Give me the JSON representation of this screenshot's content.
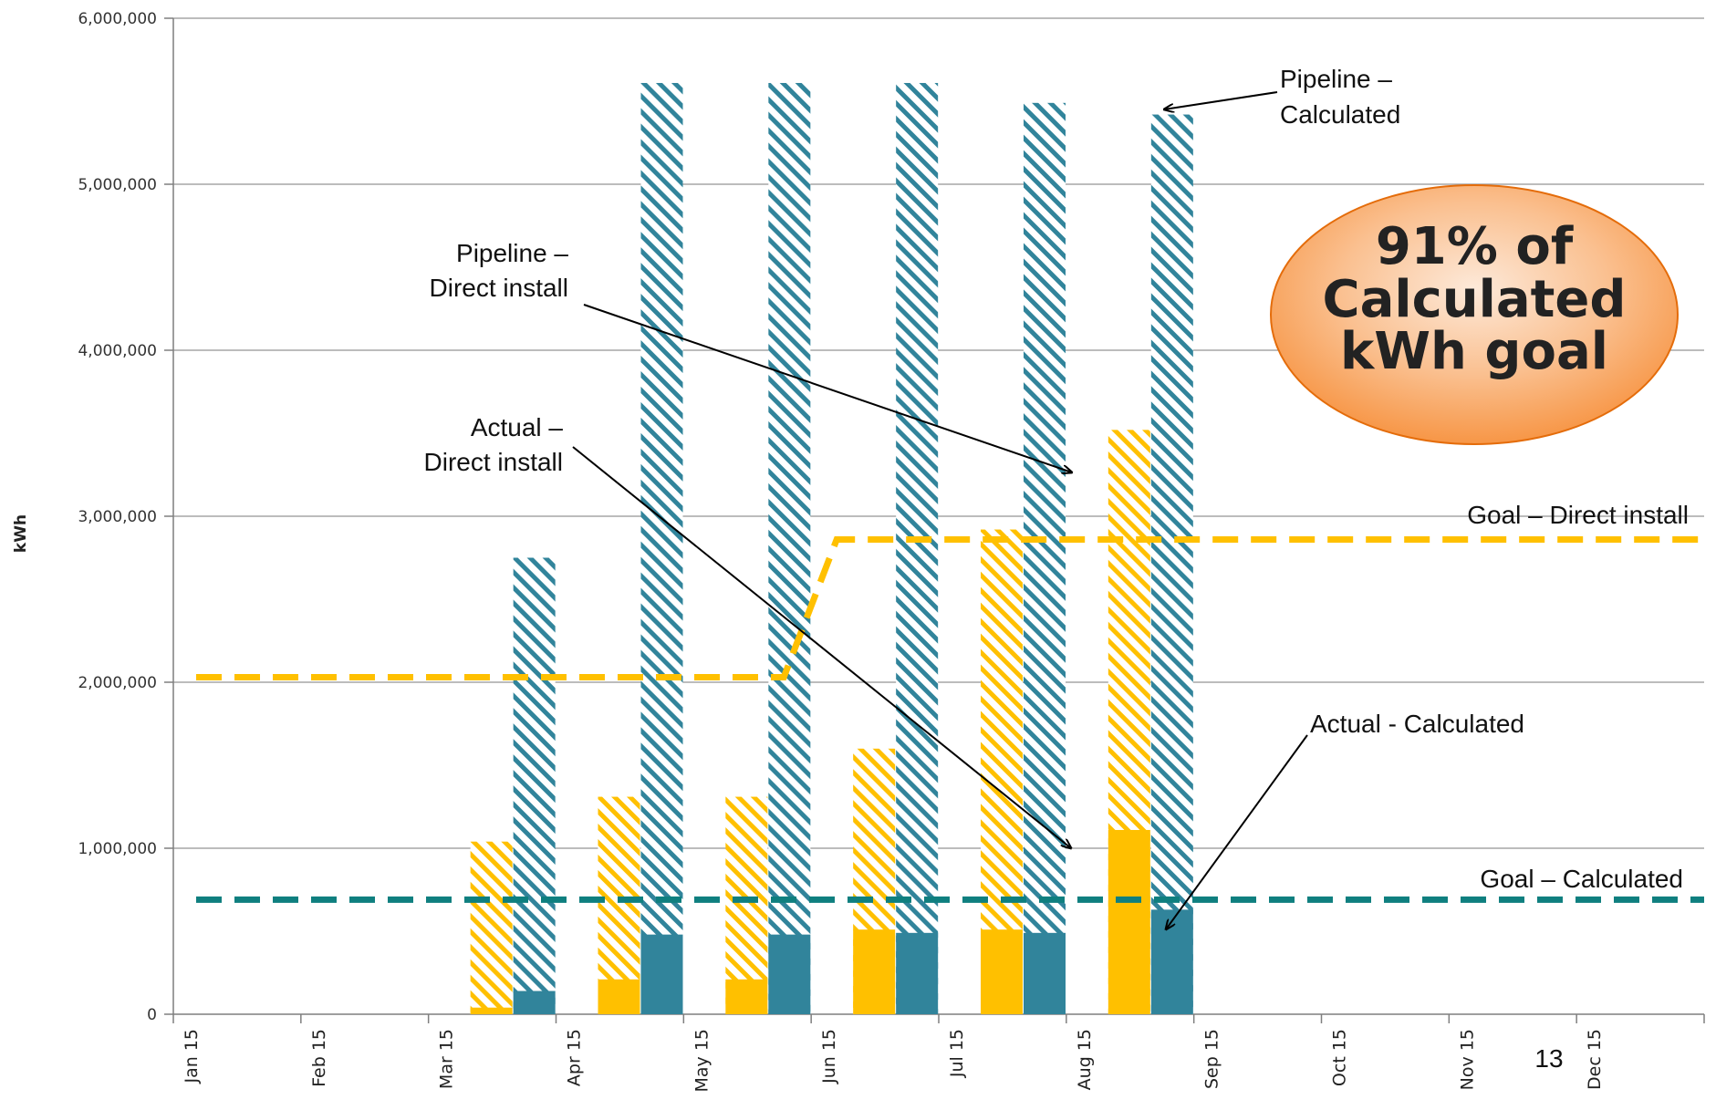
{
  "chart_data": {
    "type": "bar",
    "title": "",
    "xlabel": "",
    "ylabel": "kWh",
    "ylim": [
      0,
      6000000
    ],
    "yticks": [
      0,
      1000000,
      2000000,
      3000000,
      4000000,
      5000000,
      6000000
    ],
    "ytick_labels": [
      "0",
      "1,000,000",
      "2,000,000",
      "3,000,000",
      "4,000,000",
      "5,000,000",
      "6,000,000"
    ],
    "categories": [
      "Jan 15",
      "Feb 15",
      "Mar 15",
      "Apr 15",
      "May 15",
      "Jun 15",
      "Jul 15",
      "Aug 15",
      "Sep 15",
      "Oct 15",
      "Nov 15",
      "Dec 15"
    ],
    "grid": true,
    "series": [
      {
        "name": "Pipeline – Direct install",
        "kind": "hatched-bar",
        "color": "#FFC000",
        "group": "direct",
        "values": [
          null,
          null,
          1040000,
          1310000,
          1310000,
          1600000,
          2920000,
          3520000,
          null,
          null,
          null,
          null
        ]
      },
      {
        "name": "Actual – Direct install",
        "kind": "solid-bar",
        "color": "#FFC000",
        "group": "direct",
        "values": [
          null,
          null,
          40000,
          210000,
          210000,
          510000,
          510000,
          1110000,
          null,
          null,
          null,
          null
        ]
      },
      {
        "name": "Pipeline – Calculated",
        "kind": "hatched-bar",
        "color": "#31849B",
        "group": "calculated",
        "values": [
          null,
          null,
          2750000,
          5610000,
          5610000,
          5610000,
          5490000,
          5420000,
          null,
          null,
          null,
          null
        ]
      },
      {
        "name": "Actual - Calculated",
        "kind": "solid-bar",
        "color": "#31849B",
        "group": "calculated",
        "values": [
          null,
          null,
          140000,
          480000,
          480000,
          490000,
          490000,
          630000,
          null,
          null,
          null,
          null
        ]
      },
      {
        "name": "Goal – Direct install",
        "kind": "dashed-line",
        "color": "#FFC000",
        "values": [
          2030000,
          2030000,
          2030000,
          2030000,
          2030000,
          2860000,
          2860000,
          2860000,
          2860000,
          2860000,
          2860000,
          2860000
        ]
      },
      {
        "name": "Goal – Calculated",
        "kind": "dashed-line",
        "color": "#0F7F7F",
        "values": [
          690000,
          690000,
          690000,
          690000,
          690000,
          690000,
          690000,
          690000,
          690000,
          690000,
          690000,
          690000
        ]
      }
    ],
    "annotations": [
      {
        "name": "pipeline-calculated",
        "lines": [
          "Pipeline –",
          "Calculated"
        ]
      },
      {
        "name": "pipeline-direct-install",
        "lines": [
          "Pipeline –",
          "Direct install"
        ]
      },
      {
        "name": "actual-direct-install",
        "lines": [
          "Actual –",
          "Direct install"
        ]
      },
      {
        "name": "actual-calculated",
        "lines": [
          "Actual - Calculated"
        ]
      },
      {
        "name": "goal-direct-install",
        "lines": [
          "Goal – Direct install"
        ]
      },
      {
        "name": "goal-calculated",
        "lines": [
          "Goal – Calculated"
        ]
      }
    ],
    "callout": {
      "lines": [
        "91% of",
        "Calculated",
        "kWh goal"
      ],
      "fill": "#F79646"
    }
  },
  "page_number": "13"
}
